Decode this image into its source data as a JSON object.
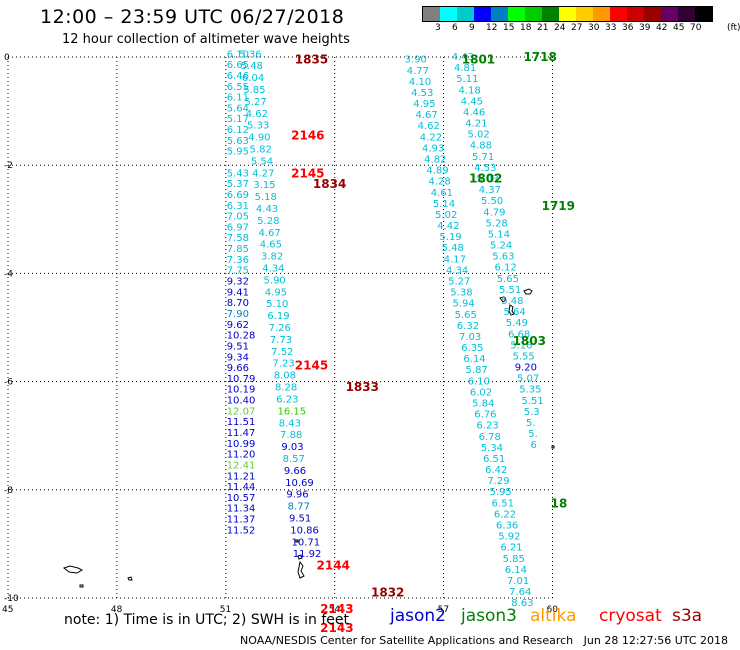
{
  "header": {
    "title": "12:00 – 23:59 UTC 06/27/2018",
    "subtitle": "12 hour collection of altimeter wave heights"
  },
  "legend": {
    "colors": [
      "#808080",
      "#00ffff",
      "#00cccc",
      "#0000ff",
      "#0080c0",
      "#00ff00",
      "#00cc00",
      "#008000",
      "#ffff00",
      "#ffcc00",
      "#ff9900",
      "#ff0000",
      "#cc0000",
      "#990000",
      "#660066",
      "#330033",
      "#000000"
    ],
    "labels": [
      "3",
      "6",
      "9",
      "12",
      "15",
      "18",
      "21",
      "24",
      "27",
      "30",
      "33",
      "36",
      "39",
      "42",
      "45",
      "70"
    ],
    "unit": "(ft)"
  },
  "axes": {
    "x_ticks": [
      "45",
      "48",
      "51",
      "54",
      "57",
      "60"
    ],
    "y_ticks": [
      "0",
      "-2",
      "-4",
      "-6",
      "-8",
      "-10"
    ]
  },
  "note": "note: 1) Time is in UTC; 2) SWH is in feet",
  "satellites": [
    {
      "name": "jason2",
      "color": "#0000cc"
    },
    {
      "name": "jason3",
      "color": "#008000"
    },
    {
      "name": "altika",
      "color": "#ff9900"
    },
    {
      "name": "cryosat",
      "color": "#ff0000"
    },
    {
      "name": "s3a",
      "color": "#990000"
    }
  ],
  "footer": {
    "credit": "NOAA/NESDIS Center for Satellite Applications and Research",
    "timestamp": "Jun 28 12:27:56 UTC 2018"
  },
  "time_labels": [
    {
      "t": "1835",
      "c": "#990000",
      "lon": 52.9,
      "lat": -0.05
    },
    {
      "t": "2146",
      "c": "#ff0000",
      "lon": 52.8,
      "lat": -1.45
    },
    {
      "t": "2145",
      "c": "#ff0000",
      "lon": 52.8,
      "lat": -2.15
    },
    {
      "t": "1834",
      "c": "#990000",
      "lon": 53.4,
      "lat": -2.35
    },
    {
      "t": "2145",
      "c": "#ff0000",
      "lon": 52.9,
      "lat": -5.7
    },
    {
      "t": "1833",
      "c": "#990000",
      "lon": 54.3,
      "lat": -6.1
    },
    {
      "t": "2144",
      "c": "#ff0000",
      "lon": 53.5,
      "lat": -9.4
    },
    {
      "t": "1832",
      "c": "#990000",
      "lon": 55.0,
      "lat": -9.9
    },
    {
      "t": "2143",
      "c": "#ff0000",
      "lon": 53.6,
      "lat": -10.2
    },
    {
      "t": "2143",
      "c": "#ff0000",
      "lon": 53.6,
      "lat": -10.55
    },
    {
      "t": "1801",
      "c": "#008000",
      "lon": 57.5,
      "lat": -0.05
    },
    {
      "t": "1718",
      "c": "#008000",
      "lon": 59.2,
      "lat": 0.0
    },
    {
      "t": "1802",
      "c": "#008000",
      "lon": 57.7,
      "lat": -2.25
    },
    {
      "t": "1719",
      "c": "#008000",
      "lon": 59.7,
      "lat": -2.75
    },
    {
      "t": "1803",
      "c": "#008000",
      "lon": 58.9,
      "lat": -5.25
    },
    {
      "t": "18",
      "c": "#008000",
      "lon": 59.95,
      "lat": -8.25
    }
  ],
  "tracks": [
    {
      "lon0": 51.3,
      "lat0": 0.05,
      "dlon": 0.0,
      "dlat": -0.2,
      "values": [
        {
          "v": "6.10",
          "c": "#00bfd8"
        },
        {
          "v": "6.65",
          "c": "#00bfd8"
        },
        {
          "v": "6.46",
          "c": "#00bfd8"
        },
        {
          "v": "6.55",
          "c": "#00bfd8"
        },
        {
          "v": "6.11",
          "c": "#00bfd8"
        },
        {
          "v": "5.64",
          "c": "#00bfd8"
        },
        {
          "v": "5.17",
          "c": "#00bfd8"
        },
        {
          "v": "6.12",
          "c": "#00bfd8"
        },
        {
          "v": "5.63",
          "c": "#00bfd8"
        },
        {
          "v": "5.95",
          "c": "#00bfd8"
        },
        {
          "v": "",
          "c": "#00bfd8"
        },
        {
          "v": "5.43",
          "c": "#00bfd8"
        },
        {
          "v": "5.37",
          "c": "#00bfd8"
        },
        {
          "v": "6.69",
          "c": "#00bfd8"
        },
        {
          "v": "6.31",
          "c": "#00bfd8"
        },
        {
          "v": "7.05",
          "c": "#00bfd8"
        },
        {
          "v": "6.97",
          "c": "#00bfd8"
        },
        {
          "v": "7.58",
          "c": "#00bfd8"
        },
        {
          "v": "7.85",
          "c": "#00bfd8"
        },
        {
          "v": "7.36",
          "c": "#00bfd8"
        },
        {
          "v": "7.75",
          "c": "#00bfd8"
        },
        {
          "v": "9.32",
          "c": "#0000cc"
        },
        {
          "v": "9.41",
          "c": "#0000cc"
        },
        {
          "v": "8.70",
          "c": "#0000cc"
        },
        {
          "v": "7.90",
          "c": "#0080c0"
        },
        {
          "v": "9.62",
          "c": "#0000cc"
        },
        {
          "v": "10.28",
          "c": "#0000cc"
        },
        {
          "v": "9.51",
          "c": "#0000cc"
        },
        {
          "v": "9.34",
          "c": "#0000cc"
        },
        {
          "v": "9.66",
          "c": "#0000cc"
        },
        {
          "v": "10.79",
          "c": "#0000cc"
        },
        {
          "v": "10.19",
          "c": "#0000cc"
        },
        {
          "v": "10.40",
          "c": "#0000cc"
        },
        {
          "v": "12.07",
          "c": "#66cc33"
        },
        {
          "v": "11.51",
          "c": "#0000cc"
        },
        {
          "v": "11.47",
          "c": "#0000cc"
        },
        {
          "v": "10.99",
          "c": "#0000cc"
        },
        {
          "v": "11.20",
          "c": "#0000cc"
        },
        {
          "v": "12.41",
          "c": "#66cc33"
        },
        {
          "v": "11.21",
          "c": "#0000cc"
        },
        {
          "v": "11.44",
          "c": "#0000cc"
        },
        {
          "v": "10.57",
          "c": "#0000cc"
        },
        {
          "v": "11.34",
          "c": "#0000cc"
        },
        {
          "v": "11.37",
          "c": "#0000cc"
        },
        {
          "v": "11.52",
          "c": "#0000cc"
        }
      ]
    },
    {
      "lon0": 51.65,
      "lat0": 0.05,
      "dlon": 0.035,
      "dlat": -0.22,
      "values": [
        {
          "v": "5.36",
          "c": "#00bfd8"
        },
        {
          "v": "5.48",
          "c": "#00bfd8"
        },
        {
          "v": "6.04",
          "c": "#00bfd8"
        },
        {
          "v": "5.85",
          "c": "#00bfd8"
        },
        {
          "v": "5.27",
          "c": "#00bfd8"
        },
        {
          "v": "4.62",
          "c": "#00bfd8"
        },
        {
          "v": "5.33",
          "c": "#00bfd8"
        },
        {
          "v": "4.90",
          "c": "#00bfd8"
        },
        {
          "v": "5.82",
          "c": "#00bfd8"
        },
        {
          "v": "5.54",
          "c": "#00bfd8"
        },
        {
          "v": "4.27",
          "c": "#00bfd8"
        },
        {
          "v": "3.15",
          "c": "#00bfd8"
        },
        {
          "v": "5.18",
          "c": "#00bfd8"
        },
        {
          "v": "4.43",
          "c": "#00bfd8"
        },
        {
          "v": "5.28",
          "c": "#00bfd8"
        },
        {
          "v": "4.67",
          "c": "#00bfd8"
        },
        {
          "v": "4.65",
          "c": "#00bfd8"
        },
        {
          "v": "3.82",
          "c": "#00bfd8"
        },
        {
          "v": "4.34",
          "c": "#00bfd8"
        },
        {
          "v": "5.90",
          "c": "#00bfd8"
        },
        {
          "v": "4.95",
          "c": "#00bfd8"
        },
        {
          "v": "5.10",
          "c": "#00bfd8"
        },
        {
          "v": "6.19",
          "c": "#00bfd8"
        },
        {
          "v": "7.26",
          "c": "#00bfd8"
        },
        {
          "v": "7.73",
          "c": "#00bfd8"
        },
        {
          "v": "7.52",
          "c": "#00bfd8"
        },
        {
          "v": "7.23",
          "c": "#00bfd8"
        },
        {
          "v": "8.08",
          "c": "#00bfd8"
        },
        {
          "v": "8.28",
          "c": "#00bfd8"
        },
        {
          "v": "6.23",
          "c": "#00bfd8"
        },
        {
          "v": "16.15",
          "c": "#33cc00"
        },
        {
          "v": "8.43",
          "c": "#00bfd8"
        },
        {
          "v": "7.88",
          "c": "#00bfd8"
        },
        {
          "v": "9.03",
          "c": "#0000cc"
        },
        {
          "v": "8.57",
          "c": "#00bfd8"
        },
        {
          "v": "9.66",
          "c": "#0000cc"
        },
        {
          "v": "10.69",
          "c": "#0000cc"
        },
        {
          "v": "9.96",
          "c": "#0000cc"
        },
        {
          "v": "8.77",
          "c": "#0080c0"
        },
        {
          "v": "9.51",
          "c": "#0000cc"
        },
        {
          "v": "10.86",
          "c": "#0000cc"
        },
        {
          "v": "10.71",
          "c": "#0000cc"
        },
        {
          "v": "11.92",
          "c": "#0000cc"
        }
      ]
    },
    {
      "lon0": 56.2,
      "lat0": -0.05,
      "dlon": 0.06,
      "dlat": -0.205,
      "values": [
        {
          "v": "3.90",
          "c": "#00bfd8"
        },
        {
          "v": "4.77",
          "c": "#00bfd8"
        },
        {
          "v": "4.10",
          "c": "#00bfd8"
        },
        {
          "v": "4.53",
          "c": "#00bfd8"
        },
        {
          "v": "4.95",
          "c": "#00bfd8"
        },
        {
          "v": "4.67",
          "c": "#00bfd8"
        },
        {
          "v": "4.62",
          "c": "#00bfd8"
        },
        {
          "v": "4.22",
          "c": "#00bfd8"
        },
        {
          "v": "4.93",
          "c": "#00bfd8"
        },
        {
          "v": "4.82",
          "c": "#00bfd8"
        },
        {
          "v": "4.89",
          "c": "#00bfd8"
        },
        {
          "v": "4.28",
          "c": "#00bfd8"
        },
        {
          "v": "4.61",
          "c": "#00bfd8"
        },
        {
          "v": "5.14",
          "c": "#00bfd8"
        },
        {
          "v": "5.02",
          "c": "#00bfd8"
        },
        {
          "v": "4.42",
          "c": "#00bfd8"
        },
        {
          "v": "5.19",
          "c": "#00bfd8"
        },
        {
          "v": "5.48",
          "c": "#00bfd8"
        },
        {
          "v": "4.17",
          "c": "#00bfd8"
        },
        {
          "v": "4.34",
          "c": "#00bfd8"
        },
        {
          "v": "5.27",
          "c": "#00bfd8"
        },
        {
          "v": "5.38",
          "c": "#00bfd8"
        },
        {
          "v": "5.94",
          "c": "#00bfd8"
        },
        {
          "v": "5.65",
          "c": "#00bfd8"
        },
        {
          "v": "6.32",
          "c": "#00bfd8"
        },
        {
          "v": "7.03",
          "c": "#00bfd8"
        },
        {
          "v": "6.35",
          "c": "#00bfd8"
        },
        {
          "v": "6.14",
          "c": "#00bfd8"
        },
        {
          "v": "5.87",
          "c": "#00bfd8"
        },
        {
          "v": "6.10",
          "c": "#00bfd8"
        },
        {
          "v": "6.02",
          "c": "#00bfd8"
        },
        {
          "v": "5.84",
          "c": "#00bfd8"
        },
        {
          "v": "6.76",
          "c": "#00bfd8"
        },
        {
          "v": "6.23",
          "c": "#00bfd8"
        },
        {
          "v": "6.78",
          "c": "#00bfd8"
        },
        {
          "v": "5.34",
          "c": "#00bfd8"
        },
        {
          "v": "6.51",
          "c": "#00bfd8"
        },
        {
          "v": "6.42",
          "c": "#00bfd8"
        },
        {
          "v": "7.29",
          "c": "#00bfd8"
        },
        {
          "v": "5.95",
          "c": "#00bfd8"
        },
        {
          "v": "6.51",
          "c": "#00bfd8"
        },
        {
          "v": "6.22",
          "c": "#00bfd8"
        },
        {
          "v": "6.36",
          "c": "#00bfd8"
        },
        {
          "v": "5.92",
          "c": "#00bfd8"
        },
        {
          "v": "6.21",
          "c": "#00bfd8"
        },
        {
          "v": "5.85",
          "c": "#00bfd8"
        },
        {
          "v": "6.14",
          "c": "#00bfd8"
        },
        {
          "v": "7.01",
          "c": "#00bfd8"
        },
        {
          "v": "7.64",
          "c": "#00bfd8"
        },
        {
          "v": "8.63",
          "c": "#00bfd8"
        }
      ]
    },
    {
      "lon0": 57.5,
      "lat0": 0.0,
      "dlon": 0.062,
      "dlat": -0.205,
      "values": [
        {
          "v": "4.43",
          "c": "#00bfd8"
        },
        {
          "v": "4.81",
          "c": "#00bfd8"
        },
        {
          "v": "5.11",
          "c": "#00bfd8"
        },
        {
          "v": "4.18",
          "c": "#00bfd8"
        },
        {
          "v": "4.45",
          "c": "#00bfd8"
        },
        {
          "v": "4.46",
          "c": "#00bfd8"
        },
        {
          "v": "4.21",
          "c": "#00bfd8"
        },
        {
          "v": "5.02",
          "c": "#00bfd8"
        },
        {
          "v": "4.88",
          "c": "#00bfd8"
        },
        {
          "v": "5.71",
          "c": "#00bfd8"
        },
        {
          "v": "4.53",
          "c": "#00bfd8"
        },
        {
          "v": "5.03",
          "c": "#00bfd8"
        },
        {
          "v": "4.37",
          "c": "#00bfd8"
        },
        {
          "v": "5.50",
          "c": "#00bfd8"
        },
        {
          "v": "4.79",
          "c": "#00bfd8"
        },
        {
          "v": "5.28",
          "c": "#00bfd8"
        },
        {
          "v": "5.14",
          "c": "#00bfd8"
        },
        {
          "v": "5.24",
          "c": "#00bfd8"
        },
        {
          "v": "5.63",
          "c": "#00bfd8"
        },
        {
          "v": "6.12",
          "c": "#00bfd8"
        },
        {
          "v": "5.65",
          "c": "#00bfd8"
        },
        {
          "v": "5.51",
          "c": "#00bfd8"
        },
        {
          "v": "5.48",
          "c": "#00bfd8"
        },
        {
          "v": "5.64",
          "c": "#00bfd8"
        },
        {
          "v": "5.49",
          "c": "#00bfd8"
        },
        {
          "v": "6.68",
          "c": "#00bfd8"
        },
        {
          "v": "5.16",
          "c": "#00bfd8"
        },
        {
          "v": "5.55",
          "c": "#00bfd8"
        },
        {
          "v": "9.20",
          "c": "#0000cc"
        },
        {
          "v": "5.07",
          "c": "#00bfd8"
        },
        {
          "v": "5.35",
          "c": "#00bfd8"
        },
        {
          "v": "5.51",
          "c": "#00bfd8"
        },
        {
          "v": "5.3",
          "c": "#00bfd8"
        },
        {
          "v": "5.",
          "c": "#00bfd8"
        },
        {
          "v": "5.",
          "c": "#00bfd8"
        },
        {
          "v": "6",
          "c": "#00bfd8"
        }
      ]
    }
  ]
}
